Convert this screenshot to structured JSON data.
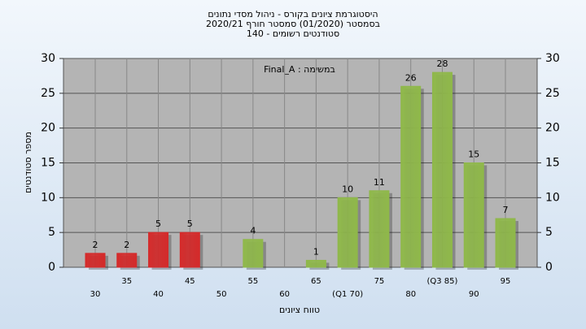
{
  "chart_data": {
    "type": "bar",
    "title": [
      "היסטוגרמת ציונים בקורס - ניהול מסדי נתונים",
      "בסמסטר (01/2020)  סמסטר חורף 2020/21",
      "סטודנטים רשומים - 140"
    ],
    "annotation": "במשימה : Final_A",
    "y_label": "מספר סטודנטים",
    "x_label": "טווח ציונים",
    "categories": [
      "30",
      "35",
      "40",
      "45",
      "50",
      "55",
      "60",
      "65",
      "(Q1 70)",
      "75",
      "80",
      "(Q3 85)",
      "90",
      "95"
    ],
    "values": [
      2,
      2,
      5,
      5,
      null,
      4,
      null,
      1,
      10,
      11,
      26,
      28,
      15,
      7
    ],
    "colors": [
      "#d42a2a",
      "#d42a2a",
      "#d42a2a",
      "#d42a2a",
      "#d42a2a",
      "#8fb84a",
      "#8fb84a",
      "#8fb84a",
      "#8fb84a",
      "#8fb84a",
      "#8fb84a",
      "#8fb84a",
      "#8fb84a",
      "#8fb84a"
    ],
    "ylim": [
      0,
      30
    ],
    "yticks": [
      0,
      5,
      10,
      15,
      20,
      25,
      30
    ],
    "grid": true
  }
}
